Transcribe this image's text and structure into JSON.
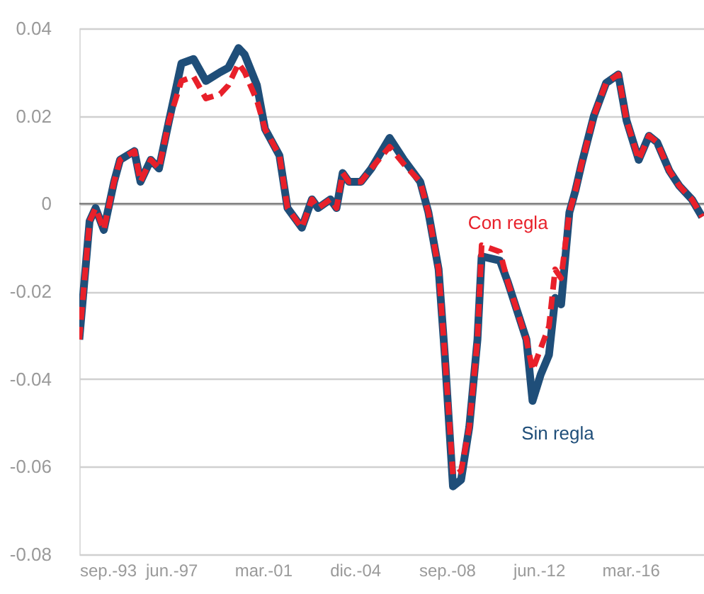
{
  "chart_data": {
    "type": "line",
    "x": [
      "1993-09",
      "1994-02",
      "1994-05",
      "1994-09",
      "1995-02",
      "1995-05",
      "1995-12",
      "1996-03",
      "1996-08",
      "1996-12",
      "1997-05",
      "1997-11",
      "1998-05",
      "1998-11",
      "1999-06",
      "1999-10",
      "2000-03",
      "2000-06",
      "2000-12",
      "2001-04",
      "2001-11",
      "2002-03",
      "2002-10",
      "2003-03",
      "2003-06",
      "2003-12",
      "2004-03",
      "2004-06",
      "2004-09",
      "2005-03",
      "2005-08",
      "2006-05",
      "2006-12",
      "2007-08",
      "2007-12",
      "2008-05",
      "2008-08",
      "2008-12",
      "2009-04",
      "2009-08",
      "2009-12",
      "2010-02",
      "2010-11",
      "2011-03",
      "2011-12",
      "2012-03",
      "2012-07",
      "2012-11",
      "2013-02",
      "2013-05",
      "2013-09",
      "2013-12",
      "2014-03",
      "2014-09",
      "2015-03",
      "2015-09",
      "2016-01",
      "2016-07",
      "2016-12",
      "2017-04",
      "2017-10",
      "2018-03",
      "2018-09",
      "2019-02"
    ],
    "series": [
      {
        "name": "Sin regla",
        "color": "#1f4e79",
        "line_style": "solid",
        "values": [
          -0.031,
          -0.004,
          -0.001,
          -0.006,
          0.005,
          0.01,
          0.012,
          0.005,
          0.01,
          0.008,
          0.019,
          0.032,
          0.033,
          0.028,
          0.03,
          0.031,
          0.0355,
          0.034,
          0.027,
          0.017,
          0.011,
          -0.001,
          -0.0055,
          0.001,
          -0.001,
          0.001,
          -0.001,
          0.007,
          0.005,
          0.005,
          0.008,
          0.015,
          0.01,
          0.005,
          -0.002,
          -0.015,
          -0.0345,
          -0.0645,
          -0.063,
          -0.051,
          -0.031,
          -0.012,
          -0.013,
          -0.018,
          -0.031,
          -0.045,
          -0.039,
          -0.0345,
          -0.0215,
          -0.023,
          -0.002,
          0.003,
          0.009,
          0.02,
          0.0275,
          0.0295,
          0.019,
          0.01,
          0.0155,
          0.014,
          0.0075,
          0.004,
          0.001,
          -0.003
        ]
      },
      {
        "name": "Con regla",
        "color": "#e8202a",
        "line_style": "dashed",
        "values": [
          -0.031,
          -0.004,
          -0.001,
          -0.006,
          0.005,
          0.01,
          0.012,
          0.005,
          0.01,
          0.008,
          0.019,
          0.028,
          0.029,
          0.024,
          0.025,
          0.027,
          0.032,
          0.03,
          0.0235,
          0.017,
          0.011,
          -0.001,
          -0.0055,
          0.001,
          -0.001,
          0.001,
          -0.001,
          0.007,
          0.005,
          0.005,
          0.008,
          0.013,
          0.009,
          0.005,
          -0.002,
          -0.015,
          -0.0345,
          -0.062,
          -0.061,
          -0.051,
          -0.031,
          -0.0095,
          -0.011,
          -0.018,
          -0.031,
          -0.038,
          -0.033,
          -0.028,
          -0.015,
          -0.017,
          -0.002,
          0.003,
          0.009,
          0.02,
          0.0275,
          0.0295,
          0.019,
          0.01,
          0.0155,
          0.014,
          0.0075,
          0.004,
          0.001,
          -0.003
        ]
      }
    ],
    "xlim": [
      "1993-09",
      "2019-03"
    ],
    "xticks": [
      {
        "value": "1993-09",
        "label": "sep.-93"
      },
      {
        "value": "1997-06",
        "label": "jun.-97"
      },
      {
        "value": "2001-03",
        "label": "mar.-01"
      },
      {
        "value": "2004-12",
        "label": "dic.-04"
      },
      {
        "value": "2008-09",
        "label": "sep.-08"
      },
      {
        "value": "2012-06",
        "label": "jun.-12"
      },
      {
        "value": "2016-03",
        "label": "mar.-16"
      }
    ],
    "ylim": [
      -0.08,
      0.04
    ],
    "yticks": [
      {
        "value": -0.08,
        "label": "-0.08"
      },
      {
        "value": -0.06,
        "label": "-0.06"
      },
      {
        "value": -0.04,
        "label": "-0.04"
      },
      {
        "value": -0.02,
        "label": "-0.02"
      },
      {
        "value": 0,
        "label": "0"
      },
      {
        "value": 0.02,
        "label": "0.02"
      },
      {
        "value": 0.04,
        "label": "0.04"
      }
    ],
    "grid": "y",
    "marker": "none"
  }
}
